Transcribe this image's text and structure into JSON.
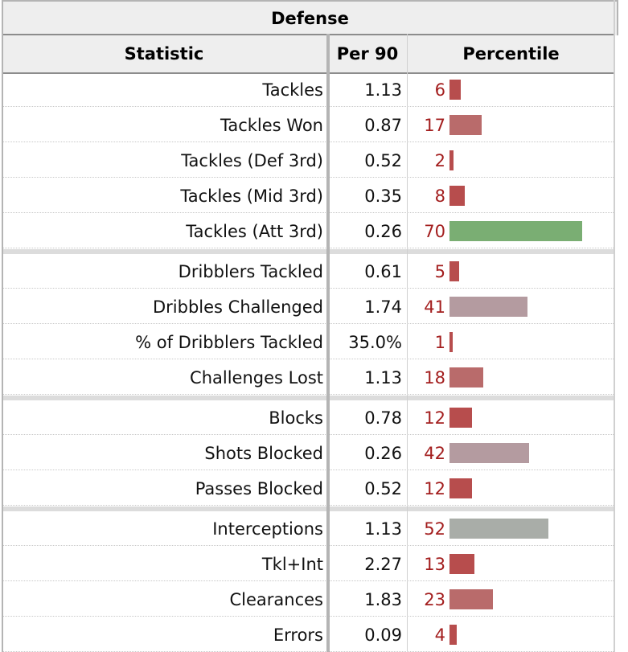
{
  "table": {
    "caption": "Defense",
    "headers": {
      "statistic": "Statistic",
      "per90": "Per 90",
      "percentile": "Percentile"
    }
  },
  "colors": {
    "low": "#b74d4d",
    "low_light": "#b96b6b",
    "mid": "#b49ba0",
    "mid_grey": "#a9ada8",
    "high": "#7aae73",
    "number": "#a31e1e"
  },
  "chart_data": {
    "type": "table",
    "title": "Defense",
    "columns": [
      "Statistic",
      "Per 90",
      "Percentile"
    ],
    "groups": [
      [
        {
          "stat": "Tackles",
          "per90": "1.13",
          "percentile": 6,
          "color": "low"
        },
        {
          "stat": "Tackles Won",
          "per90": "0.87",
          "percentile": 17,
          "color": "low_light"
        },
        {
          "stat": "Tackles (Def 3rd)",
          "per90": "0.52",
          "percentile": 2,
          "color": "low"
        },
        {
          "stat": "Tackles (Mid 3rd)",
          "per90": "0.35",
          "percentile": 8,
          "color": "low"
        },
        {
          "stat": "Tackles (Att 3rd)",
          "per90": "0.26",
          "percentile": 70,
          "color": "high"
        }
      ],
      [
        {
          "stat": "Dribblers Tackled",
          "per90": "0.61",
          "percentile": 5,
          "color": "low"
        },
        {
          "stat": "Dribbles Challenged",
          "per90": "1.74",
          "percentile": 41,
          "color": "mid"
        },
        {
          "stat": "% of Dribblers Tackled",
          "per90": "35.0%",
          "percentile": 1,
          "color": "low"
        },
        {
          "stat": "Challenges Lost",
          "per90": "1.13",
          "percentile": 18,
          "color": "low_light"
        }
      ],
      [
        {
          "stat": "Blocks",
          "per90": "0.78",
          "percentile": 12,
          "color": "low"
        },
        {
          "stat": "Shots Blocked",
          "per90": "0.26",
          "percentile": 42,
          "color": "mid"
        },
        {
          "stat": "Passes Blocked",
          "per90": "0.52",
          "percentile": 12,
          "color": "low"
        }
      ],
      [
        {
          "stat": "Interceptions",
          "per90": "1.13",
          "percentile": 52,
          "color": "mid_grey"
        },
        {
          "stat": "Tkl+Int",
          "per90": "2.27",
          "percentile": 13,
          "color": "low"
        },
        {
          "stat": "Clearances",
          "per90": "1.83",
          "percentile": 23,
          "color": "low_light"
        },
        {
          "stat": "Errors",
          "per90": "0.09",
          "percentile": 4,
          "color": "low"
        }
      ]
    ],
    "percentile_range": [
      0,
      100
    ]
  }
}
